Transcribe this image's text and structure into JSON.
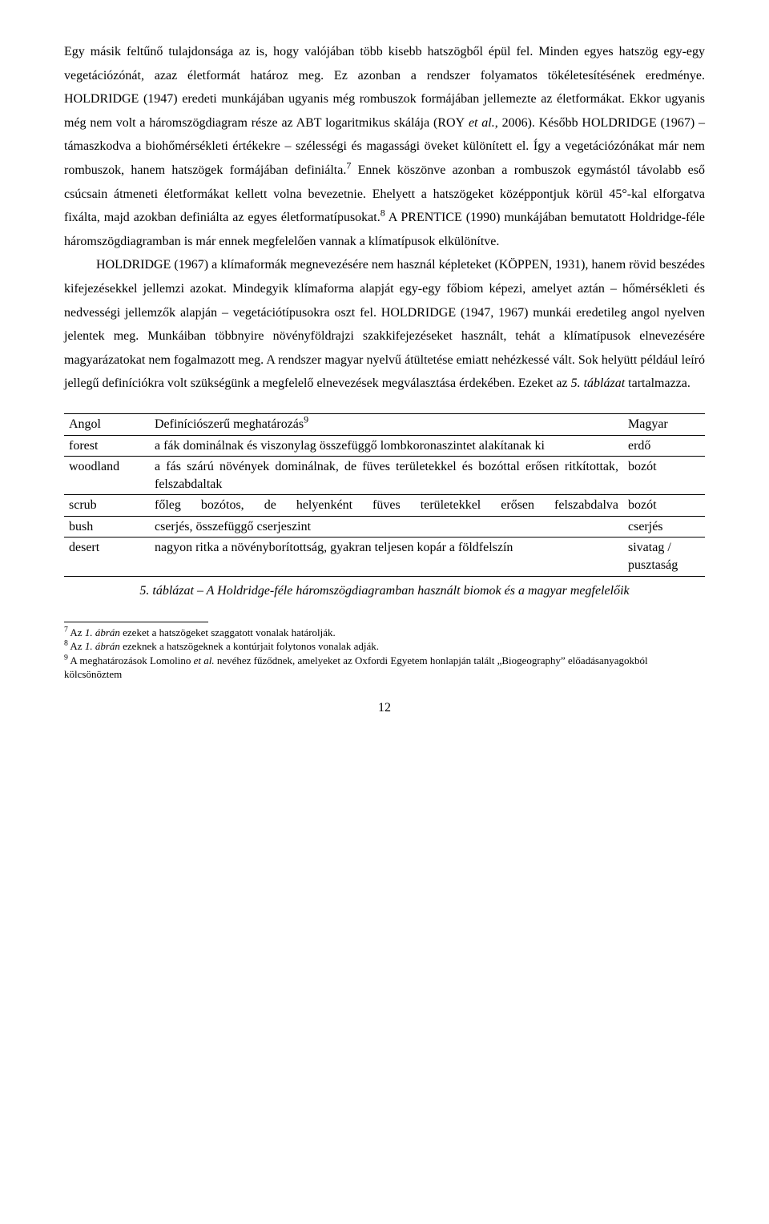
{
  "para1_html": "Egy másik feltűnő tulajdonsága az is, hogy valójában több kisebb hatszögből épül fel. Minden egyes hatszög egy-egy vegetációzónát, azaz életformát határoz meg. Ez azonban a rendszer folyamatos tökéletesítésének eredménye. H<span class='sc'>OLDRIDGE</span> (1947) eredeti munkájában ugyanis még rombuszok formájában jellemezte az életformákat. Ekkor ugyanis még nem volt a háromszögdiagram része az ABT logaritmikus skálája (R<span class='sc'>OY</span> <i>et al.</i>, 2006). Később H<span class='sc'>OLDRIDGE</span> (1967) – támaszkodva a biohőmérsékleti értékekre – szélességi és magassági öveket különített el. Így a vegetációzónákat már nem rombuszok, hanem hatszögek formájában definiálta.<span class='sup'>7</span> Ennek köszönve azonban a rombuszok egymástól távolabb eső csúcsain átmeneti életformákat kellett volna bevezetnie. Ehelyett a hatszögeket középpontjuk körül 45°-kal elforgatva fixálta, majd azokban definiálta az egyes életformatípusokat.<span class='sup'>8</span> A P<span class='sc'>RENTICE</span> (1990) munkájában bemutatott Holdridge-féle háromszögdiagramban is már ennek megfelelően vannak a klímatípusok elkülönítve.",
  "para2_html": "H<span class='sc'>OLDRIDGE</span> (1967) a klímaformák megnevezésére nem használ képleteket (K<span class='sc'>ÖPPEN</span>, 1931), hanem rövid beszédes kifejezésekkel jellemzi azokat. Mindegyik klímaforma alapját egy-egy főbiom képezi, amelyet aztán – hőmérsékleti és nedvességi jellemzők alapján – vegetációtípusokra oszt fel. H<span class='sc'>OLDRIDGE</span> (1947, 1967) munkái eredetileg angol nyelven jelentek meg. Munkáiban többnyire növényföldrajzi szakkifejezéseket használt, tehát a klímatípusok elnevezésére magyarázatokat nem fogalmazott meg. A rendszer magyar nyelvű átültetése emiatt nehézkessé vált. Sok helyütt például leíró jellegű definíciókra volt szükségünk a megfelelő elnevezések megválasztása érdekében. Ezeket az <i>5. táblázat</i> tartalmazza.",
  "table": {
    "header": {
      "en": "Angol",
      "def_html": "Definíciószerű meghatározás<span class='sup'>9</span>",
      "hu": "Magyar"
    },
    "rows": [
      {
        "en": "forest",
        "def": "a fák dominálnak és viszonylag összefüggő lombkoronaszintet alakítanak ki",
        "hu": "erdő"
      },
      {
        "en": "woodland",
        "def": "a fás szárú növények dominálnak, de füves területekkel és bozóttal erősen ritkítottak, felszabdaltak",
        "hu": "bozót"
      },
      {
        "en": "scrub",
        "def": "főleg bozótos, de helyenként füves területekkel erősen felszabdalva",
        "hu": "bozót"
      },
      {
        "en": "bush",
        "def": "cserjés, összefüggő cserjeszint",
        "hu": "cserjés"
      },
      {
        "en": "desert",
        "def": "nagyon ritka a növényborítottság, gyakran teljesen kopár a földfelszín",
        "hu": "sivatag / pusztaság"
      }
    ]
  },
  "caption": "5. táblázat – A Holdridge-féle háromszögdiagramban használt biomok és a magyar megfelelőik",
  "footnotes": {
    "f7_html": "<span class='sup'>7</span> Az <i>1. ábrán</i> ezeket a hatszögeket szaggatott vonalak határolják.",
    "f8_html": "<span class='sup'>8</span> Az <i>1. ábrán</i> ezeknek a hatszögeknek a kontúrjait folytonos vonalak adják.",
    "f9_html": "<span class='sup'>9</span> A meghatározások Lomolino <i>et al.</i> nevéhez fűződnek, amelyeket az Oxfordi Egyetem honlapján talált „Biogeography” előadásanyagokból kölcsönöztem"
  },
  "page_number": "12"
}
